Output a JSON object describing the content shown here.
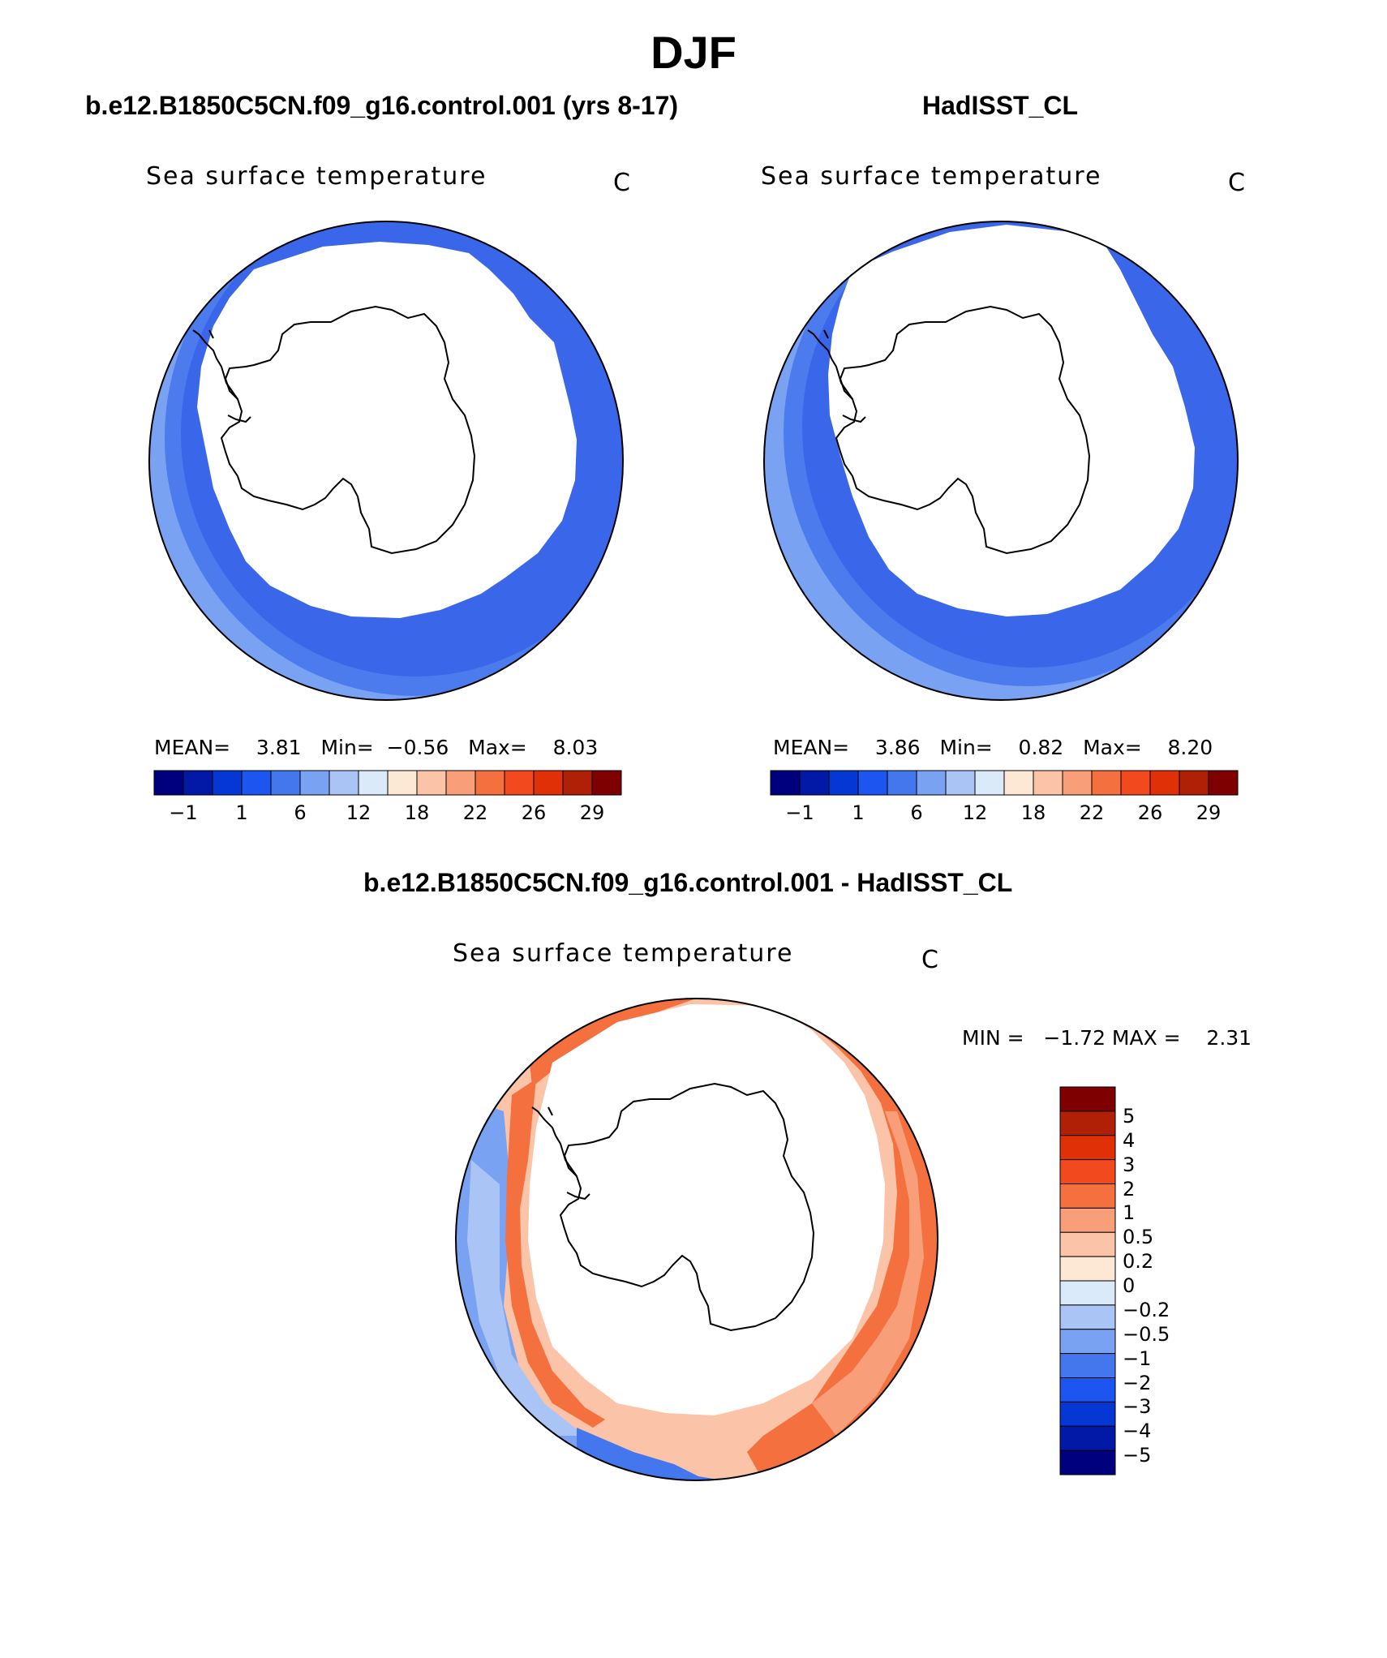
{
  "title": "DJF",
  "panels": [
    {
      "title": "b.e12.B1850C5CN.f09_g16.control.001 (yrs 8-17)",
      "subtitle": "Sea surface temperature",
      "unit": "C",
      "stats": {
        "mean_label": "MEAN=",
        "mean": "3.81",
        "min_label": "Min=",
        "min": "−0.56",
        "max_label": "Max=",
        "max": "8.03"
      }
    },
    {
      "title": "HadISST_CL",
      "subtitle": "Sea surface temperature",
      "unit": "C",
      "stats": {
        "mean_label": "MEAN=",
        "mean": "3.86",
        "min_label": "Min=",
        "min": "0.82",
        "max_label": "Max=",
        "max": "8.20"
      }
    }
  ],
  "difference": {
    "title": "b.e12.B1850C5CN.f09_g16.control.001 - HadISST_CL",
    "subtitle": "Sea surface temperature",
    "unit": "C",
    "minmax": "MIN =   −1.72 MAX =    2.31"
  },
  "colorbar_abs": {
    "colors": [
      "#00007f",
      "#0219a8",
      "#0437d4",
      "#1c55f0",
      "#4477ee",
      "#7aa2f2",
      "#abc4f6",
      "#daeaf8",
      "#fde8d6",
      "#fbc4a8",
      "#f89f7a",
      "#f5703f",
      "#f24a1e",
      "#df3008",
      "#b02006",
      "#7f0000"
    ],
    "tick_labels": [
      "−1",
      "1",
      "6",
      "12",
      "18",
      "22",
      "26",
      "29"
    ]
  },
  "colorbar_diff": {
    "colors": [
      "#7f0000",
      "#b02006",
      "#df3008",
      "#f24a1e",
      "#f5703f",
      "#f89f7a",
      "#fbc4a8",
      "#fde8d6",
      "#daeaf8",
      "#abc4f6",
      "#7aa2f2",
      "#4477ee",
      "#1c55f0",
      "#0437d4",
      "#0219a8",
      "#00007f"
    ],
    "tick_labels": [
      "5",
      "4",
      "3",
      "2",
      "1",
      "0.5",
      "0.2",
      "0",
      "−0.2",
      "−0.5",
      "−1",
      "−2",
      "−3",
      "−4",
      "−5"
    ]
  },
  "map_colors": {
    "ice": "#ffffff",
    "land": "#ffffff",
    "outline": "#000000",
    "ocean_blue_dark": "#3a66ea",
    "ocean_blue": "#4c7bee",
    "ocean_blue_light": "#7aa2f2",
    "diff_orange": "#f5703f",
    "diff_orange_light": "#f89f7a",
    "diff_peach": "#fbc4a8",
    "diff_pale": "#fde8d6",
    "diff_blue": "#4477ee",
    "diff_blue_light": "#abc4f6"
  }
}
